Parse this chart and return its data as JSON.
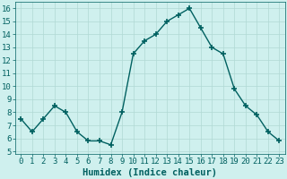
{
  "x": [
    0,
    1,
    2,
    3,
    4,
    5,
    6,
    7,
    8,
    9,
    10,
    11,
    12,
    13,
    14,
    15,
    16,
    17,
    18,
    19,
    20,
    21,
    22,
    23
  ],
  "y": [
    7.5,
    6.5,
    7.5,
    8.5,
    8.0,
    6.5,
    5.8,
    5.8,
    5.5,
    8.0,
    12.5,
    13.5,
    14.0,
    15.0,
    15.5,
    16.0,
    14.5,
    13.0,
    12.5,
    9.8,
    8.5,
    7.8,
    6.5,
    5.8
  ],
  "line_color": "#006060",
  "marker": "+",
  "marker_size": 4,
  "xlabel": "Humidex (Indice chaleur)",
  "xlim": [
    -0.5,
    23.5
  ],
  "ylim": [
    4.8,
    16.5
  ],
  "yticks": [
    5,
    6,
    7,
    8,
    9,
    10,
    11,
    12,
    13,
    14,
    15,
    16
  ],
  "xticks": [
    0,
    1,
    2,
    3,
    4,
    5,
    6,
    7,
    8,
    9,
    10,
    11,
    12,
    13,
    14,
    15,
    16,
    17,
    18,
    19,
    20,
    21,
    22,
    23
  ],
  "background_color": "#cff0ee",
  "grid_color": "#b0d8d4",
  "tick_color": "#006060",
  "label_color": "#006060",
  "font_size": 6.5,
  "xlabel_fontsize": 7.5,
  "linewidth": 1.0,
  "marker_linewidth": 1.2
}
